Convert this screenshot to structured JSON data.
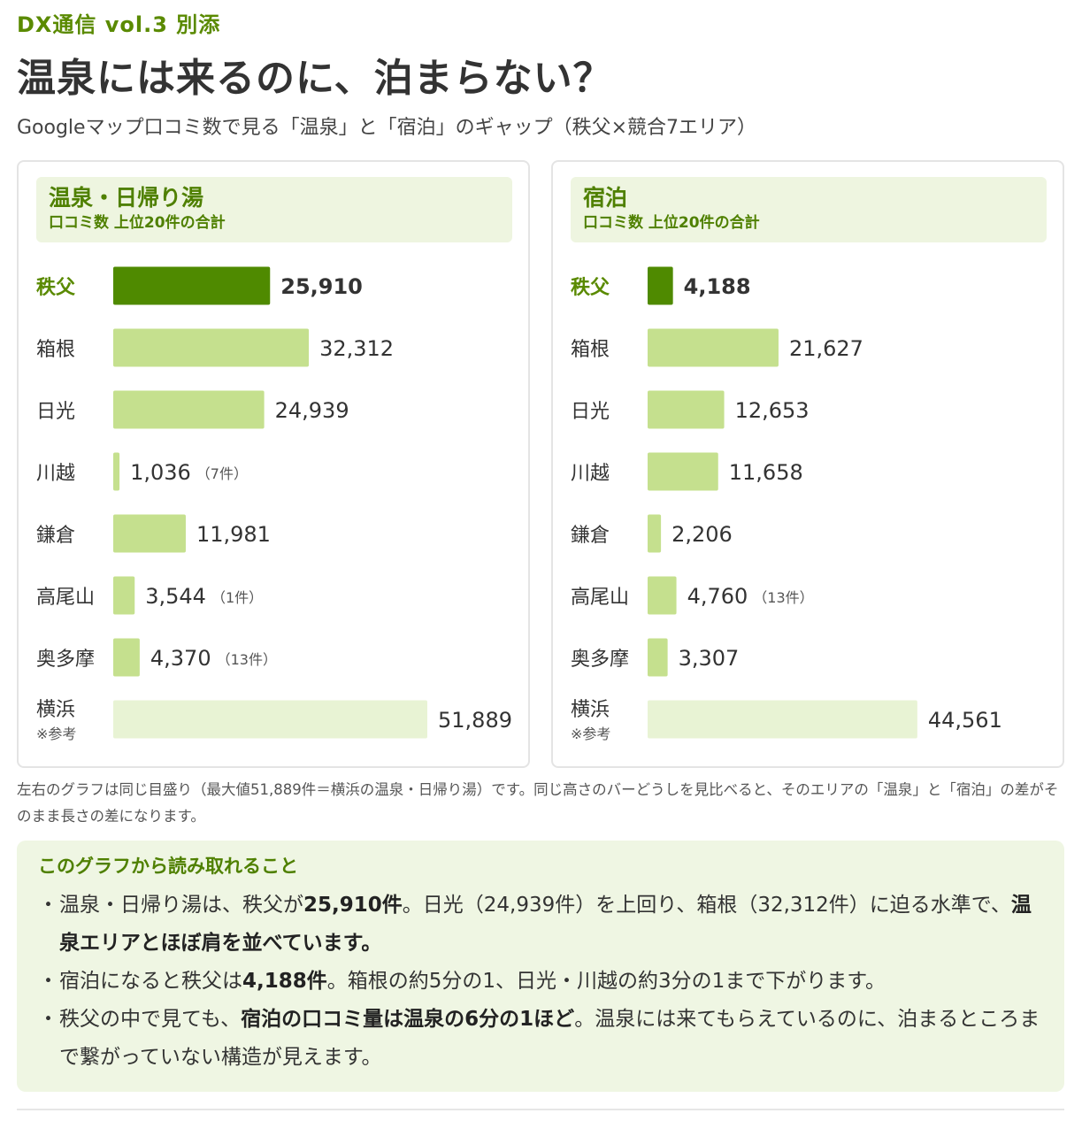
{
  "header": {
    "kicker": "DX通信 vol.3 別添",
    "title": "温泉には来るのに、泊まらない？",
    "subtitle": "Googleマップ口コミ数で見る「温泉」と「宿泊」のギャップ（秩父×競合7エリア）"
  },
  "colors": {
    "accent": "#5a8a00",
    "bar_highlight": "#4f8a00",
    "bar_normal": "#c5e08e",
    "bar_reference": "#e8f3d4",
    "panel_head_bg": "#eef5e0"
  },
  "chart_data": [
    {
      "type": "bar",
      "orientation": "horizontal",
      "title": "温泉・日帰り湯",
      "subtitle": "口コミ数 上位20件の合計",
      "xlim": [
        0,
        51889
      ],
      "categories": [
        "秩父",
        "箱根",
        "日光",
        "川越",
        "鎌倉",
        "高尾山",
        "奥多摩",
        "横浜"
      ],
      "category_notes": [
        "",
        "",
        "",
        "",
        "",
        "",
        "",
        "※参考"
      ],
      "values": [
        25910,
        32312,
        24939,
        1036,
        11981,
        3544,
        4370,
        51889
      ],
      "value_labels": [
        "25,910",
        "32,312",
        "24,939",
        "1,036",
        "11,981",
        "3,544",
        "4,370",
        "51,889"
      ],
      "count_notes": [
        "",
        "",
        "",
        "（7件）",
        "",
        "（1件）",
        "（13件）",
        ""
      ],
      "highlight": [
        "秩父"
      ],
      "reference": [
        "横浜"
      ]
    },
    {
      "type": "bar",
      "orientation": "horizontal",
      "title": "宿泊",
      "subtitle": "口コミ数 上位20件の合計",
      "xlim": [
        0,
        51889
      ],
      "categories": [
        "秩父",
        "箱根",
        "日光",
        "川越",
        "鎌倉",
        "高尾山",
        "奥多摩",
        "横浜"
      ],
      "category_notes": [
        "",
        "",
        "",
        "",
        "",
        "",
        "",
        "※参考"
      ],
      "values": [
        4188,
        21627,
        12653,
        11658,
        2206,
        4760,
        3307,
        44561
      ],
      "value_labels": [
        "4,188",
        "21,627",
        "12,653",
        "11,658",
        "2,206",
        "4,760",
        "3,307",
        "44,561"
      ],
      "count_notes": [
        "",
        "",
        "",
        "",
        "",
        "（13件）",
        "",
        ""
      ],
      "highlight": [
        "秩父"
      ],
      "reference": [
        "横浜"
      ]
    }
  ],
  "footnote": "左右のグラフは同じ目盛り（最大値51,889件＝横浜の温泉・日帰り湯）です。同じ高さのバーどうしを見比べると、そのエリアの「温泉」と「宿泊」の差がそのまま長さの差になります。",
  "insight": {
    "title": "このグラフから読み取れること",
    "bullet_mark": "・",
    "bullets": [
      [
        {
          "text": "温泉・日帰り湯は、秩父が",
          "bold": false
        },
        {
          "text": "25,910件",
          "bold": true
        },
        {
          "text": "。日光（24,939件）を上回り、箱根（32,312件）に迫る水準で、",
          "bold": false
        },
        {
          "text": "温泉エリアとほぼ肩を並べています。",
          "bold": true
        }
      ],
      [
        {
          "text": "宿泊になると秩父は",
          "bold": false
        },
        {
          "text": "4,188件",
          "bold": true
        },
        {
          "text": "。箱根の約5分の1、日光・川越の約3分の1まで下がります。",
          "bold": false
        }
      ],
      [
        {
          "text": "秩父の中で見ても、",
          "bold": false
        },
        {
          "text": "宿泊の口コミ量は温泉の6分の1ほど",
          "bold": true
        },
        {
          "text": "。温泉には来てもらえているのに、泊まるところまで繋がっていない構造が見えます。",
          "bold": false
        }
      ]
    ]
  }
}
